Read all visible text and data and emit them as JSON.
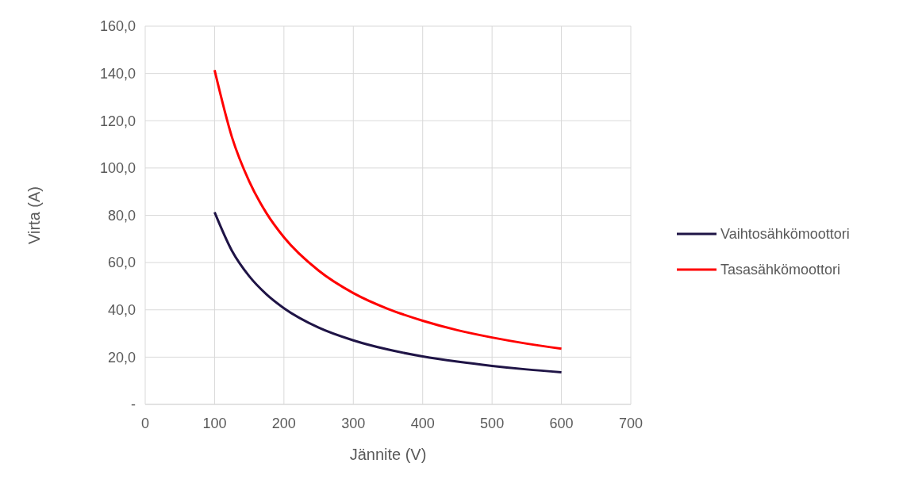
{
  "chart_data": {
    "type": "line",
    "xlabel": "Jännite (V)",
    "ylabel": "Virta (A)",
    "x": [
      100,
      125,
      150,
      175,
      200,
      250,
      300,
      350,
      400,
      450,
      500,
      550,
      600
    ],
    "series": [
      {
        "name": "Vaihtosähkömoottori",
        "color": "#1f1446",
        "values": [
          81.3,
          65.0,
          54.2,
          46.5,
          40.7,
          32.5,
          27.1,
          23.2,
          20.3,
          18.1,
          16.3,
          14.8,
          13.6
        ]
      },
      {
        "name": "Tasasähkömoottori",
        "color": "#ff0000",
        "values": [
          141.4,
          113.1,
          94.3,
          80.8,
          70.7,
          56.6,
          47.1,
          40.4,
          35.4,
          31.4,
          28.3,
          25.7,
          23.6
        ]
      }
    ],
    "xlim": [
      0,
      700
    ],
    "xticks": [
      0,
      100,
      200,
      300,
      400,
      500,
      600,
      700
    ],
    "ylim": [
      0,
      160
    ],
    "yticks": [
      {
        "value": 0,
        "label": "-"
      },
      {
        "value": 20,
        "label": "20,0"
      },
      {
        "value": 40,
        "label": "40,0"
      },
      {
        "value": 60,
        "label": "60,0"
      },
      {
        "value": 80,
        "label": "80,0"
      },
      {
        "value": 100,
        "label": "100,0"
      },
      {
        "value": 120,
        "label": "120,0"
      },
      {
        "value": 140,
        "label": "140,0"
      },
      {
        "value": 160,
        "label": "160,0"
      }
    ],
    "grid": true,
    "legend": "right",
    "marker": "none",
    "line_style": "solid"
  }
}
